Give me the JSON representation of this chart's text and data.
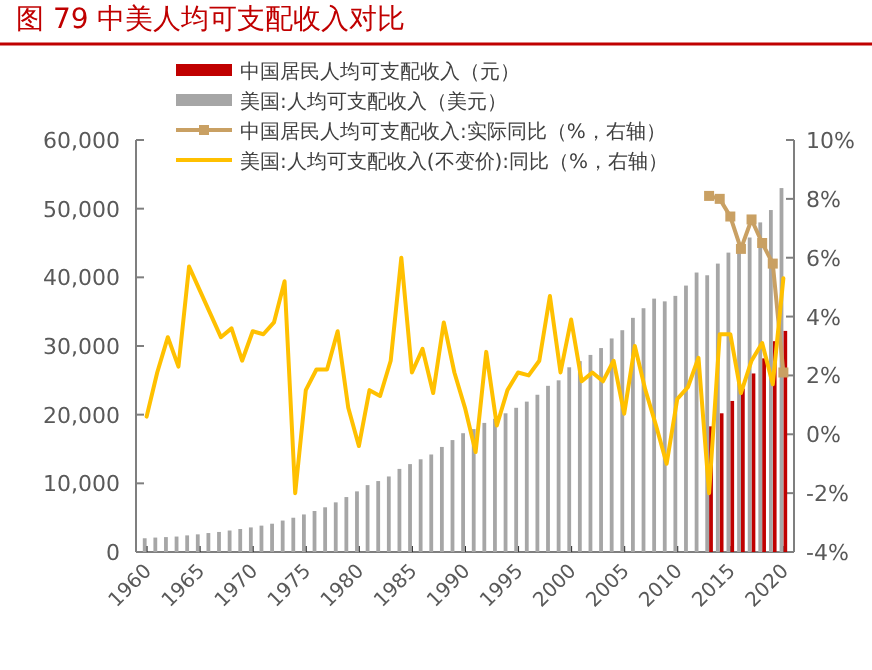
{
  "chart_data": {
    "type": "bar",
    "title": "图 79 中美人均可支配收入对比",
    "x": [
      1960,
      1961,
      1962,
      1963,
      1964,
      1965,
      1966,
      1967,
      1968,
      1969,
      1970,
      1971,
      1972,
      1973,
      1974,
      1975,
      1976,
      1977,
      1978,
      1979,
      1980,
      1981,
      1982,
      1983,
      1984,
      1985,
      1986,
      1987,
      1988,
      1989,
      1990,
      1991,
      1992,
      1993,
      1994,
      1995,
      1996,
      1997,
      1998,
      1999,
      2000,
      2001,
      2002,
      2003,
      2004,
      2005,
      2006,
      2007,
      2008,
      2009,
      2010,
      2011,
      2012,
      2013,
      2014,
      2015,
      2016,
      2017,
      2018,
      2019,
      2020
    ],
    "xlim": [
      1959,
      2021
    ],
    "xticks": [
      1960,
      1965,
      1970,
      1975,
      1980,
      1985,
      1990,
      1995,
      2000,
      2005,
      2010,
      2015,
      2020
    ],
    "ylim": [
      0,
      60000
    ],
    "yticks": [
      {
        "value": 0,
        "label": "0"
      },
      {
        "value": 10000,
        "label": "10,000"
      },
      {
        "value": 20000,
        "label": "20,000"
      },
      {
        "value": 30000,
        "label": "30,000"
      },
      {
        "value": 40000,
        "label": "40,000"
      },
      {
        "value": 50000,
        "label": "50,000"
      },
      {
        "value": 60000,
        "label": "60,000"
      }
    ],
    "y2lim": [
      -4,
      10
    ],
    "y2ticks": [
      {
        "value": -4,
        "label": "-4%"
      },
      {
        "value": -2,
        "label": "-2%"
      },
      {
        "value": 0,
        "label": "0%"
      },
      {
        "value": 2,
        "label": "2%"
      },
      {
        "value": 4,
        "label": "4%"
      },
      {
        "value": 6,
        "label": "6%"
      },
      {
        "value": 8,
        "label": "8%"
      },
      {
        "value": 10,
        "label": "10%"
      }
    ],
    "legend": "top",
    "series": [
      {
        "name": "中国居民人均可支配收入（元）",
        "color": "#c00000",
        "x": [
          2013,
          2014,
          2015,
          2016,
          2017,
          2018,
          2019,
          2020
        ],
        "values": [
          18300,
          20200,
          22000,
          23800,
          26000,
          28200,
          30700,
          32200
        ]
      },
      {
        "name": "美国:人均可支配收入（美元）",
        "color": "#a6a6a6",
        "values": [
          2000,
          2100,
          2170,
          2250,
          2420,
          2570,
          2760,
          2920,
          3130,
          3350,
          3580,
          3840,
          4120,
          4580,
          4990,
          5470,
          5970,
          6510,
          7230,
          8000,
          8830,
          9740,
          10330,
          11000,
          12100,
          12800,
          13500,
          14200,
          15300,
          16300,
          17300,
          17900,
          18800,
          19400,
          20200,
          21000,
          21900,
          22900,
          24200,
          25000,
          26900,
          27800,
          28700,
          29700,
          31100,
          32300,
          34100,
          35500,
          36900,
          36500,
          37300,
          38800,
          40700,
          40300,
          42000,
          43600,
          44200,
          45800,
          48000,
          49800,
          53000
        ]
      },
      {
        "name": "中国居民人均可支配收入:实际同比（%，右轴）",
        "type": "line",
        "axis": "y2",
        "marker": "square",
        "color": "#c9a063",
        "x": [
          2013,
          2014,
          2015,
          2016,
          2017,
          2018,
          2019,
          2020
        ],
        "values": [
          8.1,
          8.0,
          7.4,
          6.3,
          7.3,
          6.5,
          5.8,
          2.1
        ]
      },
      {
        "name": "美国:人均可支配收入(不变价):同比（%，右轴）",
        "type": "line",
        "axis": "y2",
        "marker": "none",
        "color": "#ffc000",
        "values": [
          0.6,
          2.1,
          3.3,
          2.3,
          5.7,
          4.9,
          4.1,
          3.3,
          3.6,
          2.5,
          3.5,
          3.4,
          3.8,
          5.2,
          -2.0,
          1.5,
          2.2,
          2.2,
          3.5,
          0.9,
          -0.4,
          1.5,
          1.3,
          2.5,
          6.0,
          2.1,
          2.9,
          1.4,
          3.8,
          2.1,
          0.9,
          -0.6,
          2.8,
          0.3,
          1.5,
          2.1,
          2.0,
          2.5,
          4.7,
          2.1,
          3.9,
          1.8,
          2.1,
          1.8,
          2.5,
          0.7,
          3.0,
          1.5,
          0.3,
          -1.0,
          1.2,
          1.6,
          2.6,
          -2.0,
          3.4,
          3.4,
          1.4,
          2.5,
          3.1,
          1.7,
          5.3
        ]
      }
    ]
  }
}
